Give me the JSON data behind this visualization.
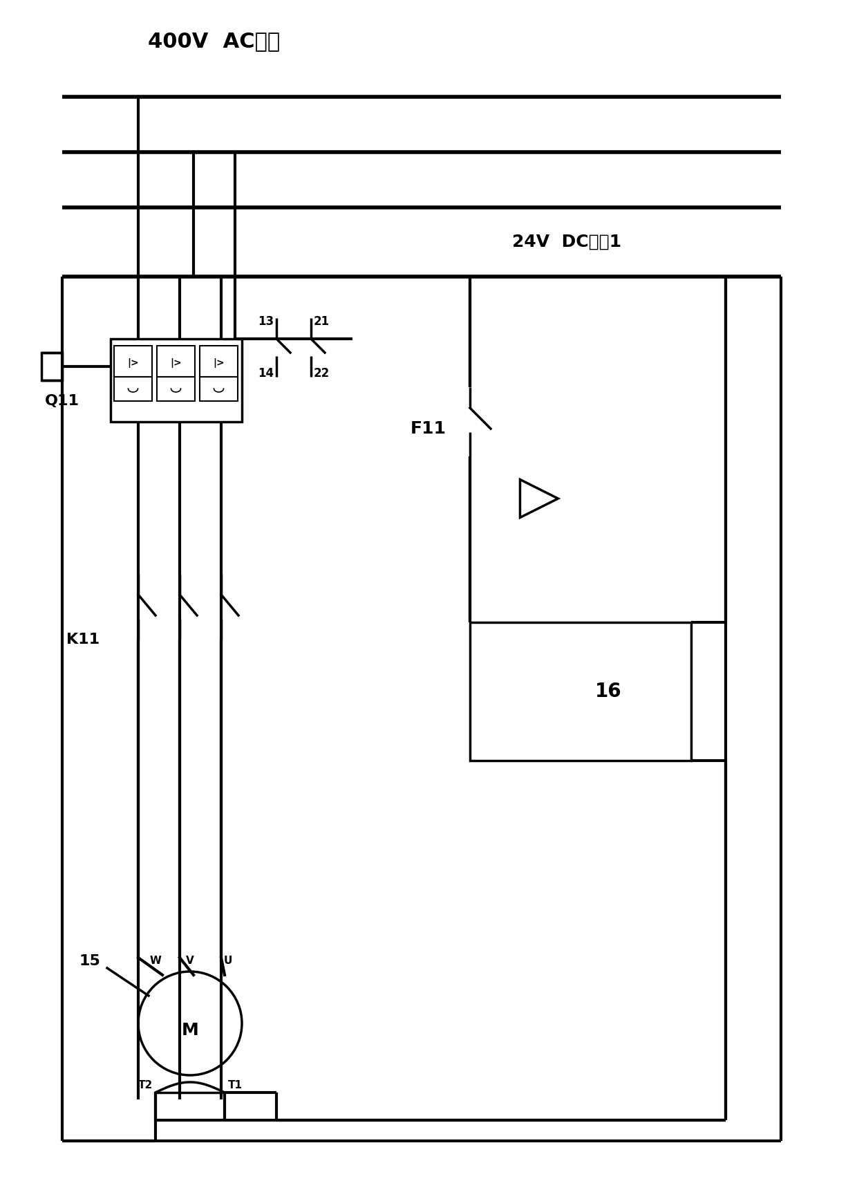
{
  "title": "400V  AC电源",
  "dc_label": "24V  DC电愨1",
  "q11_label": "Q11",
  "k11_label": "K11",
  "f11_label": "F11",
  "label_15": "15",
  "label_16": "16",
  "label_13": "13",
  "label_14": "14",
  "label_21": "21",
  "label_22": "22",
  "label_W": "W",
  "label_V": "V",
  "label_U": "U",
  "label_T1": "T1",
  "label_T2": "T2",
  "label_M": "M",
  "bg_color": "#ffffff",
  "line_color": "#000000",
  "lw": 2.5
}
